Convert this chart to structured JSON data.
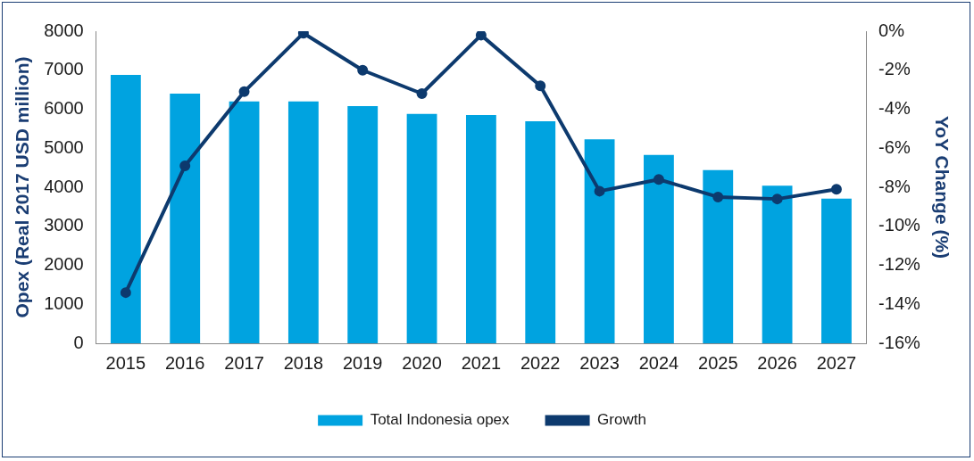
{
  "chart_data": {
    "type": "bar",
    "ylabel": "Opex (Real 2017 USD million)",
    "y2label": "YoY Change (%)",
    "categories": [
      "2015",
      "2016",
      "2017",
      "2018",
      "2019",
      "2020",
      "2021",
      "2022",
      "2023",
      "2024",
      "2025",
      "2026",
      "2027"
    ],
    "series": [
      {
        "name": "Total Indonesia opex",
        "color": "#00a3e0",
        "values": [
          6880,
          6400,
          6200,
          6200,
          6080,
          5880,
          5850,
          5690,
          5230,
          4830,
          4440,
          4040,
          3710
        ]
      },
      {
        "name": "Growth",
        "type": "line",
        "axis": "y2",
        "color": "#0d3a6e",
        "marker": "circle",
        "values": [
          -13.4,
          -6.9,
          -3.1,
          -0.1,
          -2.0,
          -3.2,
          -0.2,
          -2.8,
          -8.2,
          -7.6,
          -8.5,
          -8.6,
          -8.1
        ]
      }
    ],
    "ylim": [
      0,
      8000
    ],
    "yticks": [
      0,
      1000,
      2000,
      3000,
      4000,
      5000,
      6000,
      7000,
      8000
    ],
    "y2lim": [
      -16,
      0
    ],
    "y2ticks": [
      {
        "value": -16,
        "label": "-16%"
      },
      {
        "value": -14,
        "label": "-14%"
      },
      {
        "value": -12,
        "label": "-12%"
      },
      {
        "value": -10,
        "label": "-10%"
      },
      {
        "value": -8,
        "label": "-8%"
      },
      {
        "value": -6,
        "label": "-6%"
      },
      {
        "value": -4,
        "label": "-4%"
      },
      {
        "value": -2,
        "label": "-2%"
      },
      {
        "value": 0,
        "label": "0%"
      }
    ],
    "grid": false,
    "legend": "bottom"
  }
}
